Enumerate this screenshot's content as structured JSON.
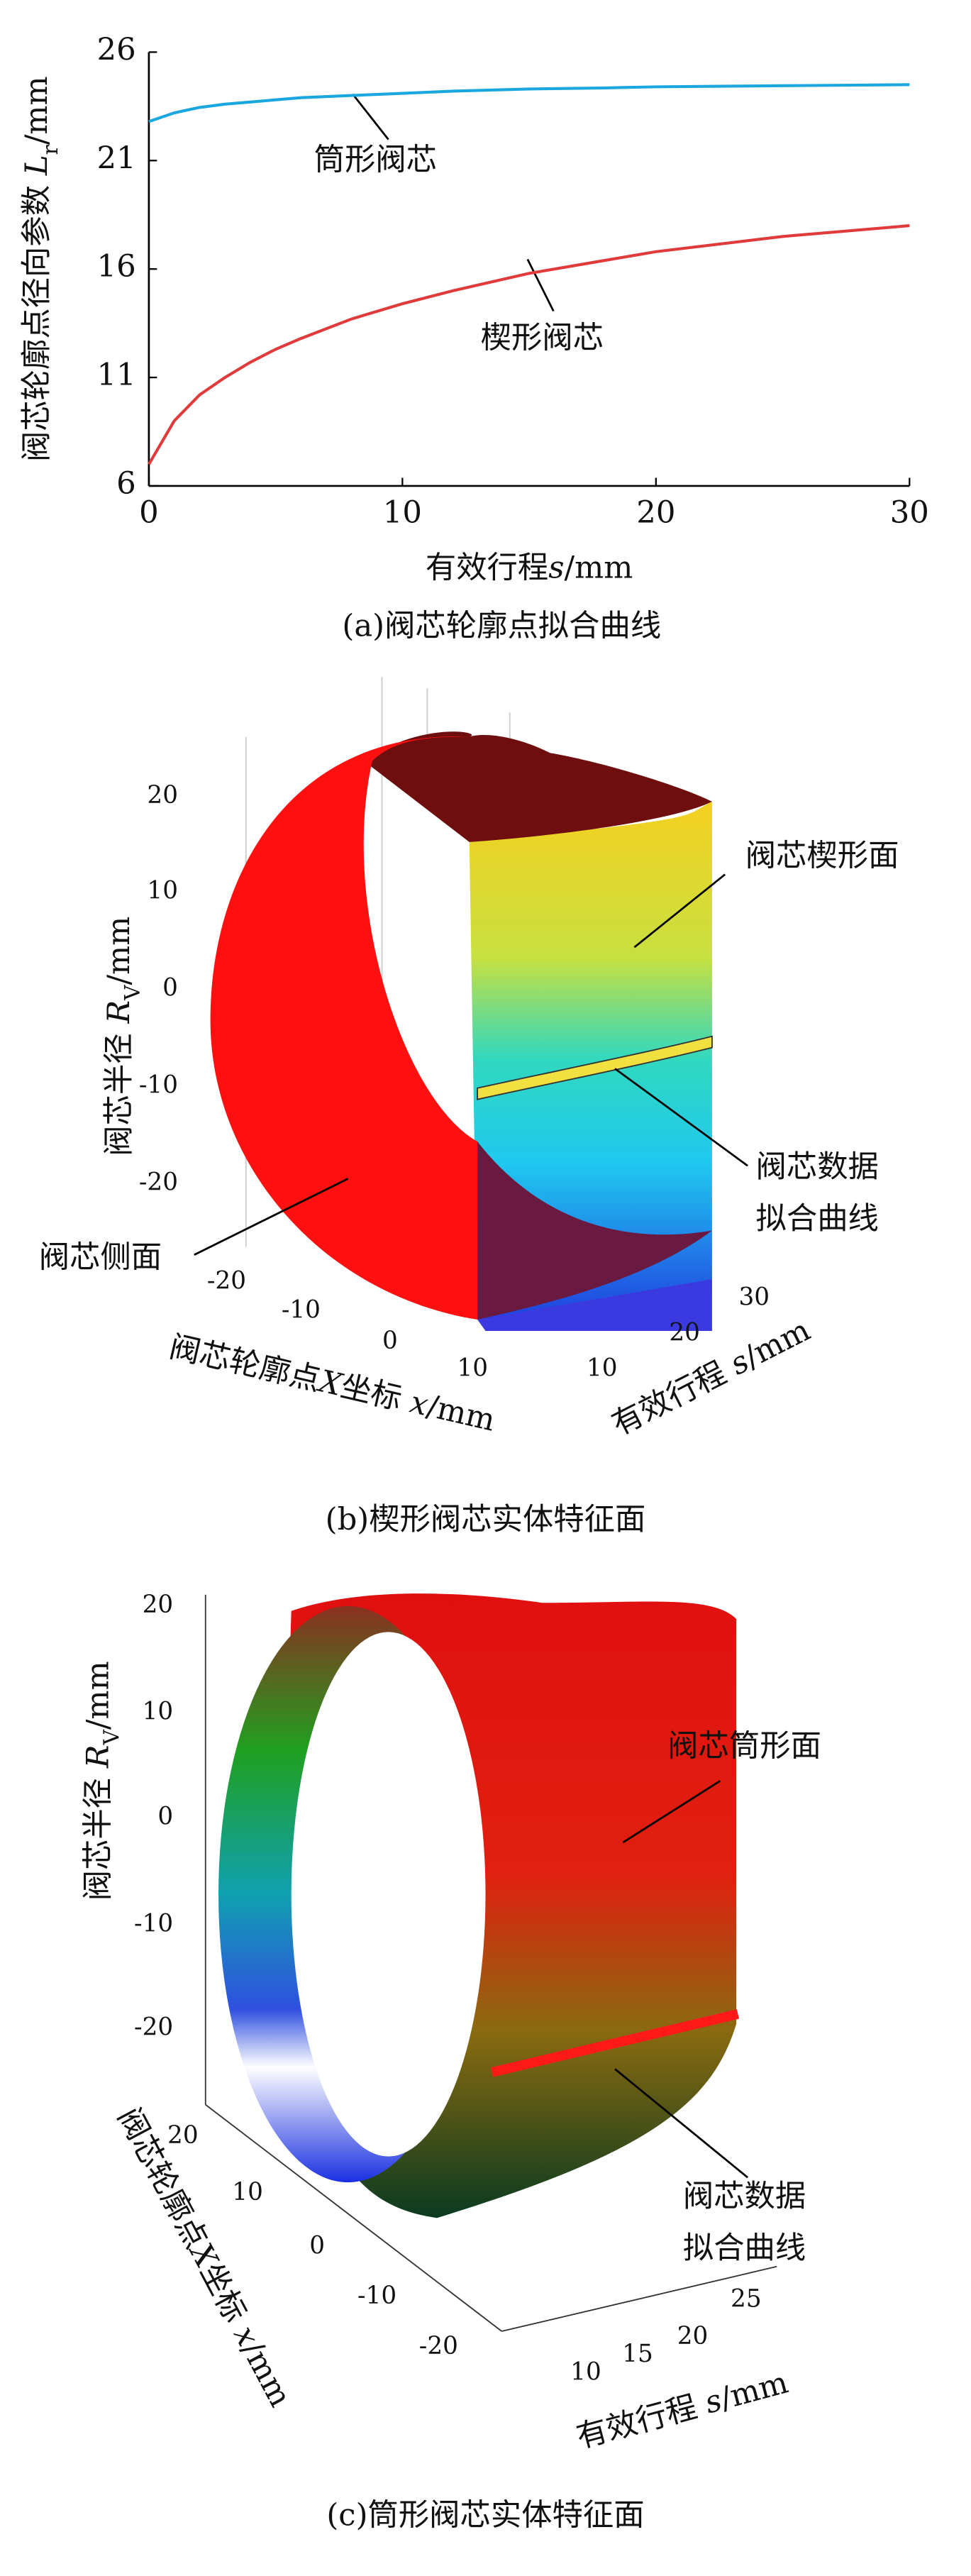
{
  "chart_data": [
    {
      "type": "line",
      "caption": "(a)阀芯轮廓点拟合曲线",
      "ylabel": [
        "阀芯轮廓点径向参数 ",
        "L",
        "r",
        "/mm"
      ],
      "xlabel": [
        "有效行程",
        "s",
        "/mm"
      ],
      "x": [
        0,
        1,
        2,
        3,
        4,
        5,
        6,
        8,
        10,
        12,
        15,
        18,
        20,
        25,
        30
      ],
      "series": [
        {
          "name": "筒形阀芯",
          "color": "#1aa7e0",
          "values": [
            22.8,
            23.2,
            23.45,
            23.6,
            23.7,
            23.8,
            23.9,
            24.0,
            24.1,
            24.2,
            24.3,
            24.35,
            24.4,
            24.45,
            24.5
          ]
        },
        {
          "name": "楔形阀芯",
          "color": "#e03a3a",
          "values": [
            7.0,
            9.0,
            10.2,
            11.0,
            11.7,
            12.3,
            12.8,
            13.7,
            14.4,
            15.0,
            15.8,
            16.4,
            16.8,
            17.5,
            18.0
          ]
        }
      ],
      "xlim": [
        0,
        30
      ],
      "xticks": [
        0,
        10,
        20,
        30
      ],
      "ylim": [
        6,
        26
      ],
      "yticks": [
        6,
        11,
        16,
        21,
        26
      ]
    },
    {
      "type": "surface",
      "caption": "(b)楔形阀芯实体特征面",
      "zlabel": [
        "阀芯半径 ",
        "R",
        "V",
        "/mm"
      ],
      "xlabel": [
        "阀芯轮廓点",
        "X",
        "坐标 ",
        "x",
        "/mm"
      ],
      "slabel": [
        "有效行程 ",
        "s",
        "/mm"
      ],
      "zticks": [
        20,
        10,
        0,
        -10,
        -20
      ],
      "xticks": [
        -20,
        -10,
        0,
        10
      ],
      "sticks": [
        10,
        20,
        30
      ],
      "annotations": [
        "阀芯楔形面",
        "阀芯数据",
        "拟合曲线",
        "阀芯侧面"
      ]
    },
    {
      "type": "surface",
      "caption": "(c)筒形阀芯实体特征面",
      "zlabel": [
        "阀芯半径 ",
        "R",
        "V",
        "/mm"
      ],
      "xlabel": [
        "阀芯轮廓点",
        "X",
        "坐标 ",
        "x",
        "/mm"
      ],
      "slabel": [
        "有效行程 ",
        "s",
        "/mm"
      ],
      "zticks": [
        20,
        10,
        0,
        -10,
        -20
      ],
      "xticks": [
        20,
        10,
        0,
        -10,
        -20
      ],
      "sticks": [
        10,
        15,
        20,
        25
      ],
      "annotations": [
        "阀芯筒形面",
        "阀芯数据",
        "拟合曲线"
      ]
    }
  ]
}
